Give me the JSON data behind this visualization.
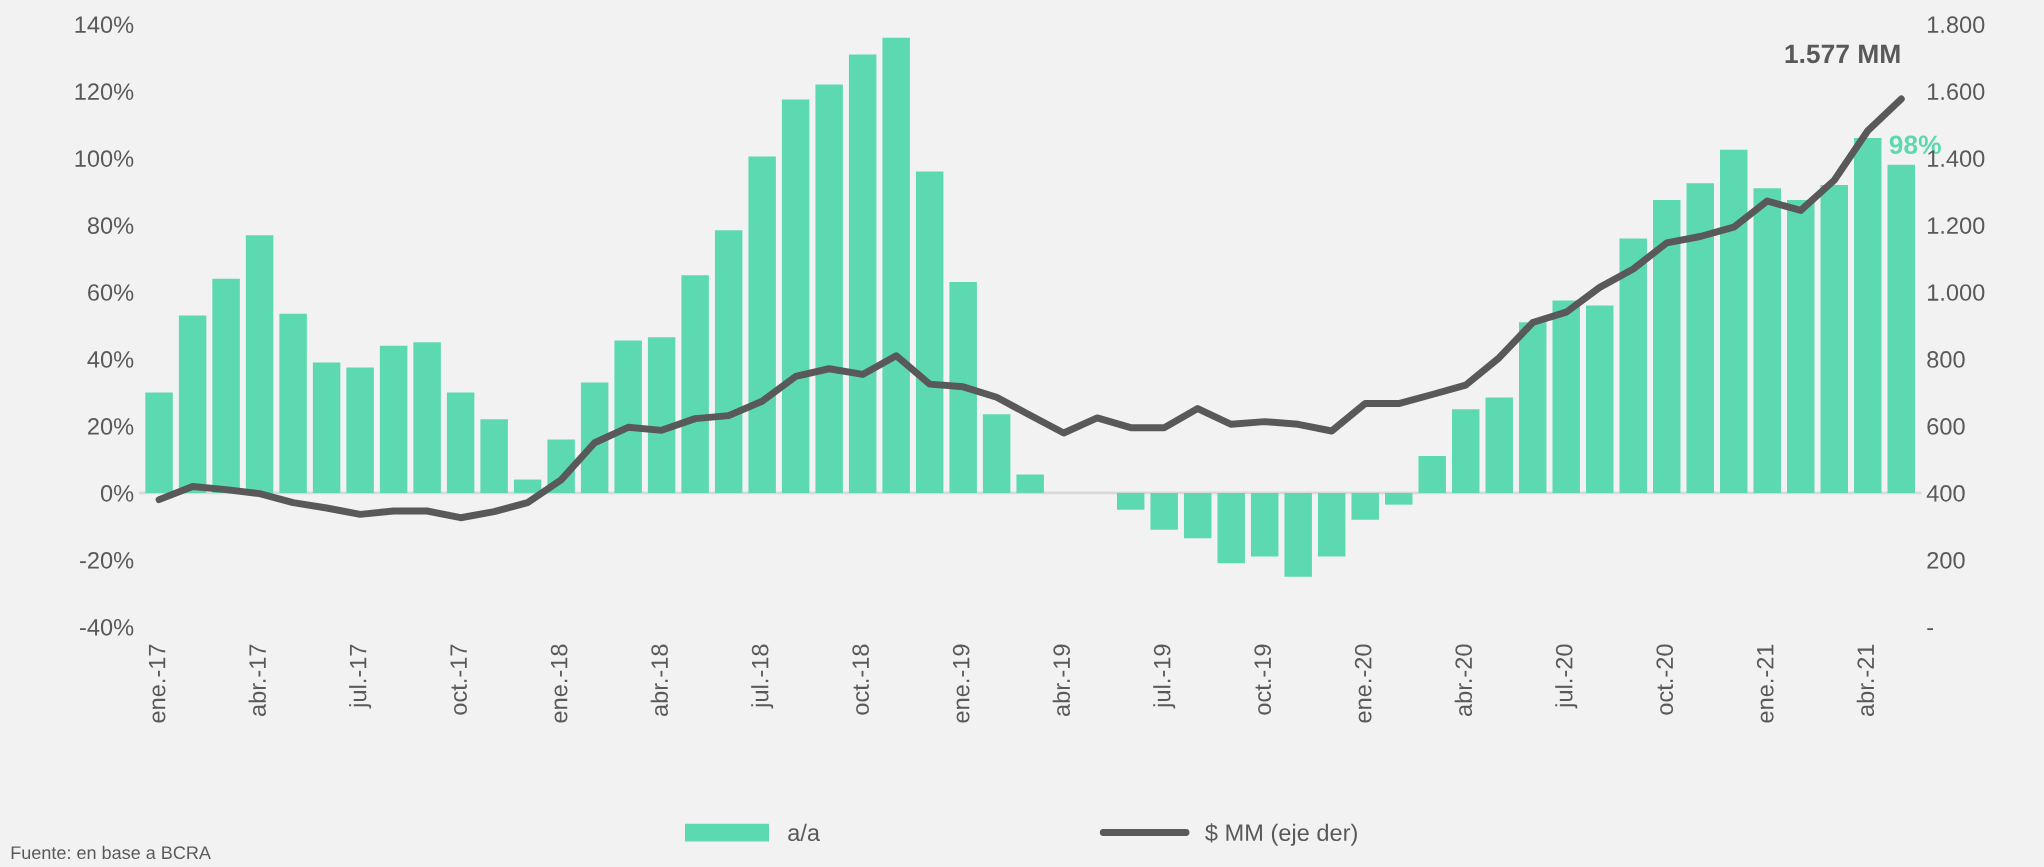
{
  "chart_data": {
    "type": "bar",
    "categories": [
      "ene.-17",
      null,
      null,
      "abr.-17",
      null,
      null,
      "jul.-17",
      null,
      null,
      "oct.-17",
      null,
      null,
      "ene.-18",
      null,
      null,
      "abr.-18",
      null,
      null,
      "jul.-18",
      null,
      null,
      "oct.-18",
      null,
      null,
      "ene.-19",
      null,
      null,
      "abr.-19",
      null,
      null,
      "jul.-19",
      null,
      null,
      "oct.-19",
      null,
      null,
      "ene.-20",
      null,
      null,
      "abr.-20",
      null,
      null,
      "jul.-20",
      null,
      null,
      "oct.-20",
      null,
      null,
      "ene.-21",
      null,
      null,
      "abr.-21",
      null
    ],
    "series": [
      {
        "name": "a/a",
        "color": "#5cd9b1",
        "values": [
          30,
          53,
          64,
          77,
          53.5,
          39,
          37.5,
          44,
          45,
          30,
          22,
          4,
          16,
          33,
          45.5,
          46.5,
          65,
          78.5,
          100.5,
          117.5,
          122,
          131,
          136,
          96,
          63,
          23.5,
          5.5,
          0,
          0,
          -5,
          -11,
          -13.5,
          -21,
          -19,
          -25,
          -19,
          -8,
          -3.5,
          11,
          25,
          28.5,
          51,
          57.5,
          56,
          76,
          87.5,
          92.5,
          102.5,
          91,
          87.5,
          92,
          106,
          98
        ]
      },
      {
        "name": "$ MM (eje der)",
        "type": "line",
        "axis": "y2",
        "color": "#595959",
        "values": [
          380,
          419,
          410,
          398,
          371,
          355,
          336,
          346,
          346,
          326,
          344,
          371,
          439,
          550,
          596,
          587,
          622,
          631,
          674,
          748,
          771,
          754,
          810,
          725,
          717,
          686,
          632,
          579,
          624,
          595,
          595,
          652,
          605,
          613,
          605,
          585,
          667,
          667,
          694,
          722,
          804,
          909,
          940,
          1014,
          1069,
          1147,
          1166,
          1194,
          1272,
          1244,
          1334,
          1482,
          1577
        ]
      }
    ],
    "ylim": [
      -40,
      140
    ],
    "yticks": [
      {
        "value": -40,
        "label": "-40%"
      },
      {
        "value": -20,
        "label": "-20%"
      },
      {
        "value": 0,
        "label": "0%"
      },
      {
        "value": 20,
        "label": "20%"
      },
      {
        "value": 40,
        "label": "40%"
      },
      {
        "value": 60,
        "label": "60%"
      },
      {
        "value": 80,
        "label": "80%"
      },
      {
        "value": 100,
        "label": "100%"
      },
      {
        "value": 120,
        "label": "120%"
      },
      {
        "value": 140,
        "label": "140%"
      }
    ],
    "y2lim": [
      0,
      1800
    ],
    "y2ticks": [
      {
        "value": 0,
        "label": "-"
      },
      200,
      400,
      600,
      800,
      {
        "value": 1000,
        "label": "1.000"
      },
      {
        "value": 1200,
        "label": "1.200"
      },
      {
        "value": 1400,
        "label": "1.400"
      },
      {
        "value": 1600,
        "label": "1.600"
      },
      {
        "value": 1800,
        "label": "1.800"
      }
    ],
    "ref_lines": [
      {
        "axis": "y",
        "value": 0,
        "color": "#d9d9d9"
      }
    ],
    "annotations": [
      "1.577 MM",
      "98%",
      "Fuente: en base a BCRA"
    ],
    "legend": "bottom",
    "grid": false
  }
}
